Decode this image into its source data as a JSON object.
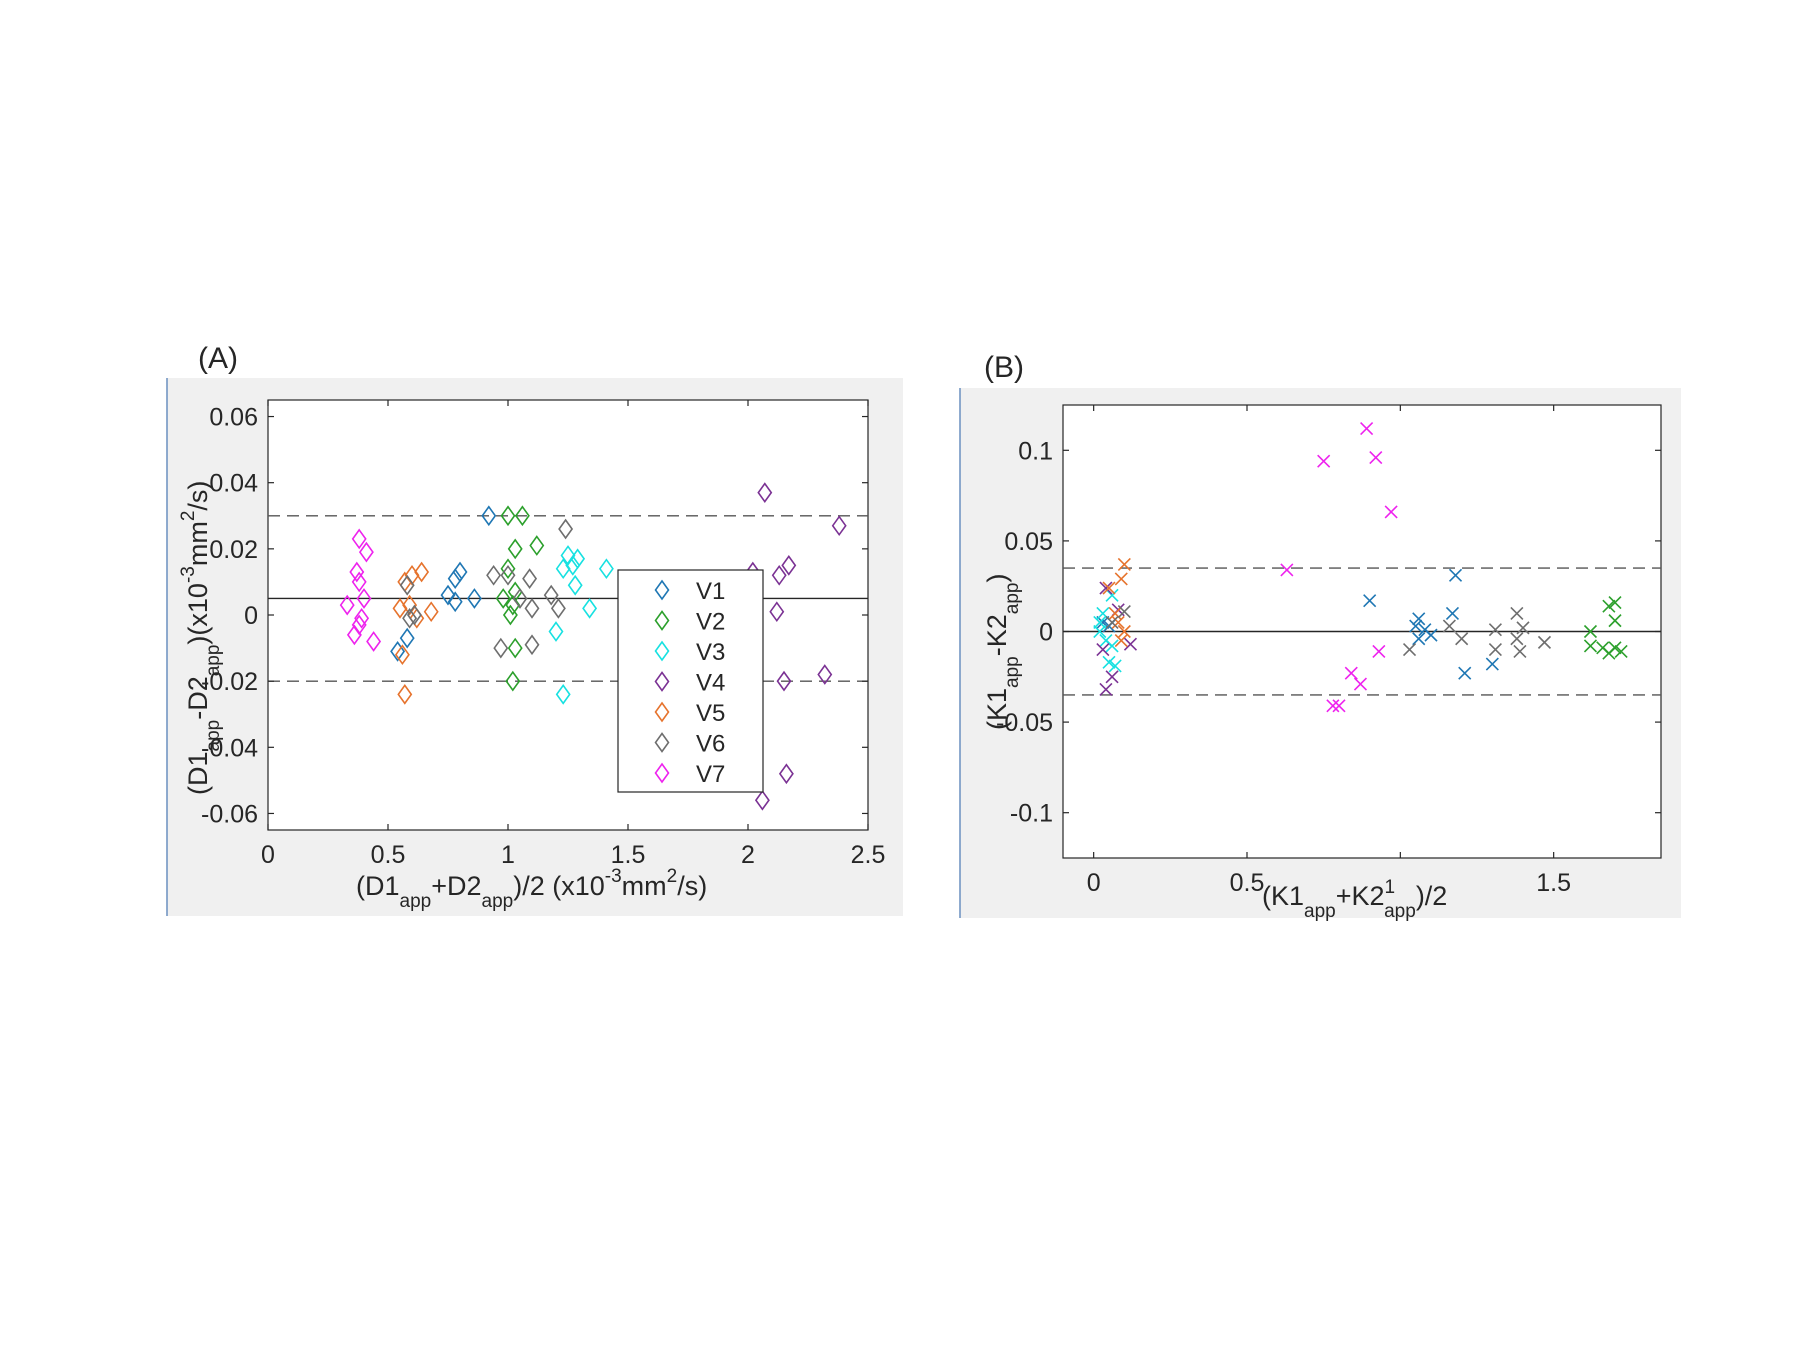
{
  "colors": {
    "V1": "#1f77b4",
    "V2": "#2ca02c",
    "V3": "#17e1e1",
    "V4": "#7b3294",
    "V5": "#e6732d",
    "V6": "#6e6e6e",
    "V7": "#ee22ee",
    "axis": "#262626",
    "panel_bg": "#f0f0f0",
    "dashed": "#555555"
  },
  "chart_data": [
    {
      "type": "scatter",
      "panel_label": "(A)",
      "marker": "diamond",
      "xlim": [
        0,
        2.5
      ],
      "ylim": [
        -0.065,
        0.065
      ],
      "xticks": [
        0,
        0.5,
        1,
        1.5,
        2,
        2.5
      ],
      "xtick_labels": [
        "0",
        "0.5",
        "1",
        "1.5",
        "2",
        "2.5"
      ],
      "yticks": [
        -0.06,
        -0.04,
        -0.02,
        0,
        0.02,
        0.04,
        0.06
      ],
      "ytick_labels": [
        "-0.06",
        "-0.04",
        "-0.02",
        "0",
        "0.02",
        "0.04",
        "0.06"
      ],
      "xlabel": {
        "main": "(D1",
        "sub1": "app",
        "mid": "+D2",
        "sub2": "app",
        "tail": ")/2 (x10",
        "sup": "-3",
        "unit": "mm",
        "sup2": "2",
        "end": "/s)"
      },
      "ylabel": {
        "main": "(D1",
        "sub1": "app",
        "mid": "-D2",
        "sub2": "app",
        "tail": ")(x10",
        "sup": "-3",
        "unit": "mm",
        "sup2": "2",
        "end": "/s)"
      },
      "reference_lines": {
        "mean": 0.005,
        "upper": 0.03,
        "lower": -0.02
      },
      "legend": {
        "position": "inside-right",
        "entries": [
          "V1",
          "V2",
          "V3",
          "V4",
          "V5",
          "V6",
          "V7"
        ]
      },
      "series": [
        {
          "name": "V1",
          "points": [
            [
              0.92,
              0.03
            ],
            [
              0.8,
              0.013
            ],
            [
              0.78,
              0.011
            ],
            [
              0.86,
              0.005
            ],
            [
              0.75,
              0.006
            ],
            [
              0.78,
              0.004
            ],
            [
              0.58,
              -0.007
            ],
            [
              0.54,
              -0.011
            ]
          ]
        },
        {
          "name": "V2",
          "points": [
            [
              1.0,
              0.03
            ],
            [
              1.06,
              0.03
            ],
            [
              1.12,
              0.021
            ],
            [
              1.03,
              0.02
            ],
            [
              1.0,
              0.014
            ],
            [
              1.03,
              0.007
            ],
            [
              0.98,
              0.005
            ],
            [
              1.02,
              0.003
            ],
            [
              1.01,
              0.0
            ],
            [
              1.03,
              -0.01
            ],
            [
              1.02,
              -0.02
            ]
          ]
        },
        {
          "name": "V3",
          "points": [
            [
              1.25,
              0.018
            ],
            [
              1.29,
              0.017
            ],
            [
              1.23,
              0.014
            ],
            [
              1.27,
              0.015
            ],
            [
              1.41,
              0.014
            ],
            [
              1.28,
              0.009
            ],
            [
              1.34,
              0.002
            ],
            [
              1.2,
              -0.005
            ],
            [
              1.23,
              -0.024
            ]
          ]
        },
        {
          "name": "V4",
          "points": [
            [
              2.07,
              0.037
            ],
            [
              2.38,
              0.027
            ],
            [
              2.02,
              0.013
            ],
            [
              2.17,
              0.015
            ],
            [
              2.13,
              0.012
            ],
            [
              2.12,
              0.001
            ],
            [
              2.32,
              -0.018
            ],
            [
              2.15,
              -0.02
            ],
            [
              2.16,
              -0.048
            ],
            [
              2.06,
              -0.056
            ]
          ]
        },
        {
          "name": "V5",
          "points": [
            [
              0.64,
              0.013
            ],
            [
              0.6,
              0.012
            ],
            [
              0.57,
              0.01
            ],
            [
              0.55,
              0.002
            ],
            [
              0.59,
              0.003
            ],
            [
              0.62,
              -0.001
            ],
            [
              0.68,
              0.001
            ],
            [
              0.56,
              -0.012
            ],
            [
              0.57,
              -0.024
            ]
          ]
        },
        {
          "name": "V6",
          "points": [
            [
              1.24,
              0.026
            ],
            [
              0.94,
              0.012
            ],
            [
              1.09,
              0.011
            ],
            [
              1.0,
              0.012
            ],
            [
              1.18,
              0.006
            ],
            [
              1.05,
              0.005
            ],
            [
              1.1,
              0.002
            ],
            [
              1.21,
              0.002
            ],
            [
              0.97,
              -0.01
            ],
            [
              1.1,
              -0.009
            ],
            [
              0.58,
              0.009
            ],
            [
              0.59,
              -0.001
            ],
            [
              0.61,
              0.0
            ]
          ]
        },
        {
          "name": "V7",
          "points": [
            [
              0.38,
              0.023
            ],
            [
              0.41,
              0.019
            ],
            [
              0.37,
              0.013
            ],
            [
              0.38,
              0.01
            ],
            [
              0.4,
              0.005
            ],
            [
              0.33,
              0.003
            ],
            [
              0.39,
              -0.001
            ],
            [
              0.38,
              -0.003
            ],
            [
              0.36,
              -0.006
            ],
            [
              0.44,
              -0.008
            ]
          ]
        }
      ]
    },
    {
      "type": "scatter",
      "panel_label": "(B)",
      "marker": "x",
      "xlim": [
        -0.1,
        1.85
      ],
      "ylim": [
        -0.125,
        0.125
      ],
      "xticks": [
        0,
        0.5,
        1,
        1.5
      ],
      "xtick_labels": [
        "0",
        "0.5",
        "",
        "1.5"
      ],
      "yticks": [
        -0.1,
        -0.05,
        0,
        0.05,
        0.1
      ],
      "ytick_labels": [
        "-0.1",
        "-0.05",
        "0",
        "0.05",
        "0.1"
      ],
      "xlabel": {
        "main": "(K1",
        "sub1": "app",
        "mid": "+K2",
        "sup": "1",
        "sub2": "app",
        "end": ")/2"
      },
      "ylabel": {
        "main": "(K1",
        "sub1": "app",
        "mid": "-K2",
        "sub2": "app",
        "end": ")"
      },
      "reference_lines": {
        "mean": 0.0,
        "upper": 0.035,
        "lower": -0.035
      },
      "series": [
        {
          "name": "V1",
          "points": [
            [
              1.18,
              0.031
            ],
            [
              0.9,
              0.017
            ],
            [
              1.17,
              0.01
            ],
            [
              1.06,
              0.007
            ],
            [
              1.05,
              0.003
            ],
            [
              1.08,
              0.001
            ],
            [
              1.1,
              -0.002
            ],
            [
              1.06,
              -0.004
            ],
            [
              1.3,
              -0.018
            ],
            [
              1.21,
              -0.023
            ],
            [
              0.03,
              0.005
            ],
            [
              0.05,
              0.003
            ]
          ]
        },
        {
          "name": "V2",
          "points": [
            [
              1.7,
              0.016
            ],
            [
              1.68,
              0.014
            ],
            [
              1.7,
              0.006
            ],
            [
              1.62,
              0.0
            ],
            [
              1.62,
              -0.008
            ],
            [
              1.66,
              -0.009
            ],
            [
              1.7,
              -0.009
            ],
            [
              1.72,
              -0.011
            ],
            [
              1.68,
              -0.012
            ]
          ]
        },
        {
          "name": "V3",
          "points": [
            [
              0.03,
              0.01
            ],
            [
              0.06,
              0.02
            ],
            [
              0.02,
              0.005
            ],
            [
              0.04,
              -0.005
            ],
            [
              0.06,
              -0.008
            ],
            [
              0.05,
              -0.017
            ],
            [
              0.07,
              -0.019
            ],
            [
              0.02,
              0.0
            ]
          ]
        },
        {
          "name": "V4",
          "points": [
            [
              0.04,
              0.024
            ],
            [
              0.08,
              0.012
            ],
            [
              0.03,
              -0.01
            ],
            [
              0.12,
              -0.007
            ],
            [
              0.06,
              -0.025
            ],
            [
              0.04,
              -0.032
            ]
          ]
        },
        {
          "name": "V5",
          "points": [
            [
              0.1,
              0.037
            ],
            [
              0.09,
              0.029
            ],
            [
              0.05,
              0.024
            ],
            [
              0.07,
              0.01
            ],
            [
              0.08,
              0.005
            ],
            [
              0.1,
              0.0
            ],
            [
              0.09,
              -0.005
            ]
          ]
        },
        {
          "name": "V6",
          "points": [
            [
              1.38,
              0.01
            ],
            [
              1.16,
              0.003
            ],
            [
              1.31,
              0.001
            ],
            [
              1.4,
              0.002
            ],
            [
              1.2,
              -0.004
            ],
            [
              1.38,
              -0.004
            ],
            [
              1.47,
              -0.006
            ],
            [
              1.03,
              -0.01
            ],
            [
              1.31,
              -0.01
            ],
            [
              1.39,
              -0.011
            ],
            [
              0.06,
              0.005
            ],
            [
              0.1,
              0.011
            ]
          ]
        },
        {
          "name": "V7",
          "points": [
            [
              0.89,
              0.112
            ],
            [
              0.92,
              0.096
            ],
            [
              0.75,
              0.094
            ],
            [
              0.97,
              0.066
            ],
            [
              0.63,
              0.034
            ],
            [
              0.93,
              -0.011
            ],
            [
              0.84,
              -0.023
            ],
            [
              0.87,
              -0.029
            ],
            [
              0.78,
              -0.041
            ],
            [
              0.8,
              -0.041
            ]
          ]
        }
      ]
    }
  ]
}
